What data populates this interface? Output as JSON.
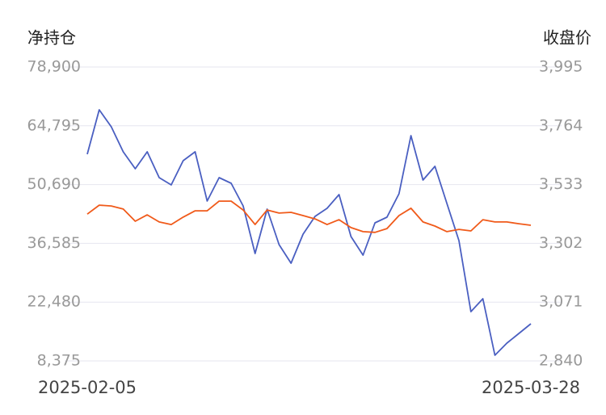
{
  "chart_data": {
    "type": "line",
    "y_label": "净持仓",
    "y2_label": "收盘价",
    "categories": [
      "2025-02-05",
      null,
      null,
      null,
      null,
      null,
      null,
      null,
      null,
      null,
      null,
      null,
      null,
      null,
      null,
      null,
      null,
      null,
      null,
      null,
      null,
      null,
      null,
      null,
      null,
      null,
      null,
      null,
      null,
      null,
      null,
      null,
      null,
      null,
      null,
      null,
      null,
      "2025-03-28"
    ],
    "series": [
      {
        "color": "#4a5fc1",
        "values": [
          57975,
          68631,
          64563,
          58556,
          54488,
          58556,
          52356,
          50613,
          56425,
          58556,
          46738,
          52356,
          51000,
          45575,
          34144,
          44800,
          36275,
          31819,
          38794,
          43056,
          45000,
          48288,
          38213,
          33756,
          41506,
          42863,
          48481,
          62431,
          51775,
          55069,
          46156,
          37244,
          20194,
          23294,
          9731,
          12638,
          14963,
          17288
        ]
      },
      {
        "color": "#f05a1a",
        "axis": "y2",
        "values": [
          3417,
          3452,
          3449,
          3437,
          3389,
          3414,
          3386,
          3376,
          3405,
          3430,
          3430,
          3468,
          3468,
          3433,
          3376,
          3433,
          3421,
          3424,
          3411,
          3398,
          3376,
          3395,
          3364,
          3348,
          3345,
          3360,
          3411,
          3440,
          3386,
          3370,
          3348,
          3357,
          3351,
          3395,
          3386,
          3386,
          3379,
          3373
        ]
      }
    ],
    "ylim": [
      8375,
      78900
    ],
    "yticks": [
      {
        "value": 8375,
        "label": "8,375"
      },
      {
        "value": 22480,
        "label": "22,480"
      },
      {
        "value": 36585,
        "label": "36,585"
      },
      {
        "value": 50690,
        "label": "50,690"
      },
      {
        "value": 64795,
        "label": "64,795"
      },
      {
        "value": 78900,
        "label": "78,900"
      }
    ],
    "y2lim": [
      2840,
      3995
    ],
    "y2ticks": [
      {
        "value": 2840,
        "label": "2,840"
      },
      {
        "value": 3071,
        "label": "3,071"
      },
      {
        "value": 3302,
        "label": "3,302"
      },
      {
        "value": 3533,
        "label": "3,533"
      },
      {
        "value": 3764,
        "label": "3,764"
      },
      {
        "value": 3995,
        "label": "3,995"
      }
    ],
    "grid": true
  }
}
